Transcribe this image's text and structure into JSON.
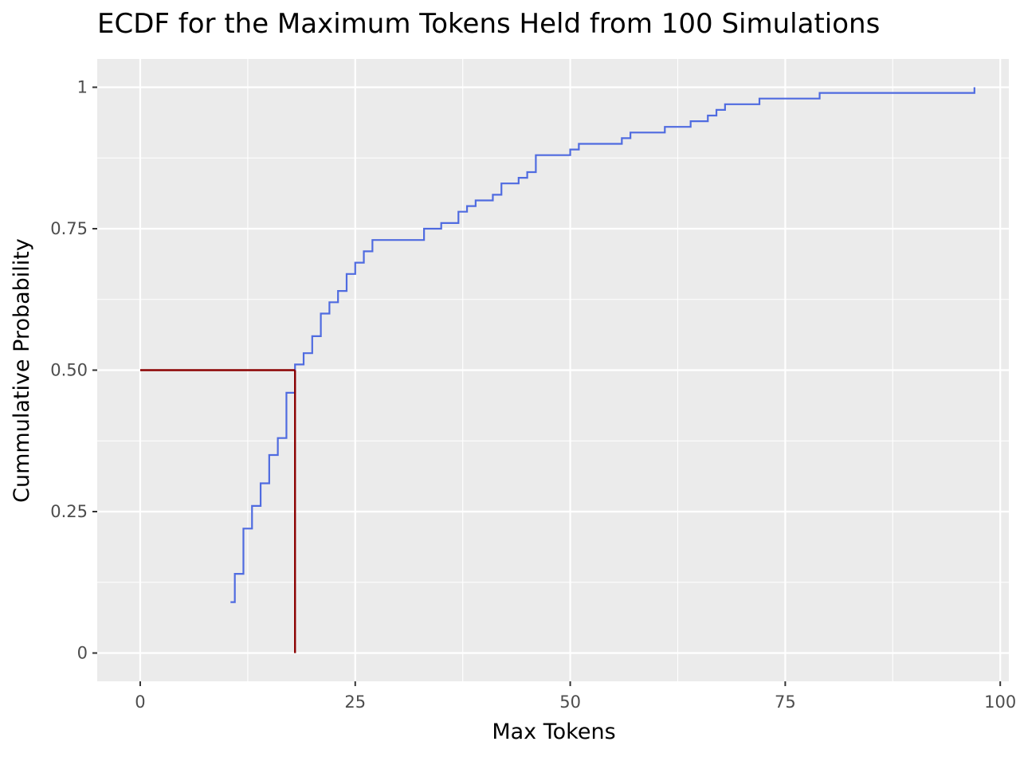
{
  "chart_data": {
    "type": "line",
    "title": "ECDF for the Maximum Tokens Held from 100 Simulations",
    "xlabel": "Max Tokens",
    "ylabel": "Cummulative Probability",
    "xlim": [
      -5,
      101
    ],
    "ylim": [
      -0.05,
      1.05
    ],
    "x_ticks": [
      0,
      25,
      50,
      75,
      100
    ],
    "x_tick_labels": [
      "0",
      "25",
      "50",
      "75",
      "100"
    ],
    "y_ticks": [
      0,
      0.25,
      0.5,
      0.75,
      1
    ],
    "y_tick_labels": [
      "0",
      "0.25",
      "0.50",
      "0.75",
      "1"
    ],
    "grid": true,
    "legend": "none",
    "colors": {
      "panel": "#ebebeb",
      "grid": "#ffffff",
      "ecdf_line": "#4f6be0",
      "median_line": "#8b0000",
      "tick_label": "#4d4d4d"
    },
    "series": [
      {
        "kind": "step",
        "color": "#4f6be0",
        "x": [
          10.5,
          11,
          12,
          13,
          14,
          15,
          16,
          17,
          18,
          19,
          20,
          21,
          22,
          23,
          24,
          25,
          26,
          27,
          33,
          35,
          37,
          38,
          39,
          41,
          42,
          44,
          45,
          46,
          50,
          51,
          56,
          57,
          61,
          64,
          66,
          67,
          68,
          72,
          79,
          97,
          97
        ],
        "y": [
          0.09,
          0.14,
          0.22,
          0.26,
          0.3,
          0.35,
          0.38,
          0.46,
          0.51,
          0.53,
          0.56,
          0.6,
          0.62,
          0.64,
          0.67,
          0.69,
          0.71,
          0.73,
          0.75,
          0.76,
          0.78,
          0.79,
          0.8,
          0.81,
          0.83,
          0.84,
          0.85,
          0.88,
          0.89,
          0.9,
          0.91,
          0.92,
          0.93,
          0.94,
          0.95,
          0.96,
          0.97,
          0.98,
          0.99,
          0.99,
          1.0
        ]
      },
      {
        "kind": "segments",
        "color": "#8b0000",
        "segments": [
          {
            "x1": 0,
            "y1": 0.5,
            "x2": 18,
            "y2": 0.5
          },
          {
            "x1": 18,
            "y1": 0.5,
            "x2": 18,
            "y2": 0
          }
        ]
      }
    ]
  }
}
